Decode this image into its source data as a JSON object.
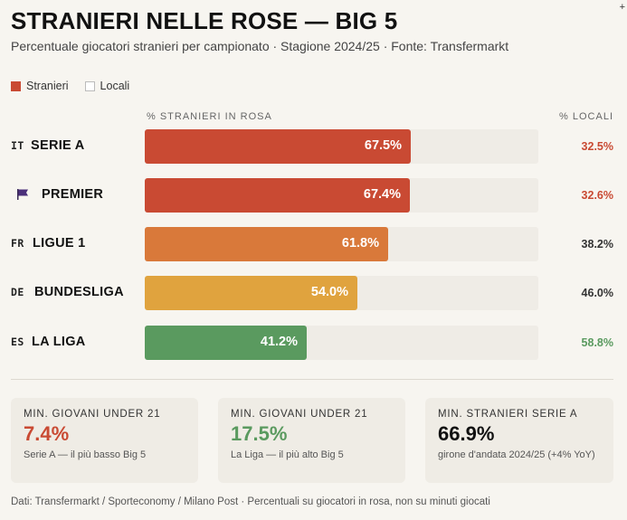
{
  "header": {
    "title": "STRANIERI NELLE ROSE — BIG 5",
    "subtitle": "Percentuale giocatori stranieri per campionato · Stagione 2024/25 · Fonte: Transfermarkt",
    "corner_mark": "+"
  },
  "legend": {
    "foreign_label": "Stranieri",
    "local_label": "Locali"
  },
  "columns": {
    "left": "% STRANIERI IN ROSA",
    "right": "% LOCALI"
  },
  "colors": {
    "red": "#c94a33",
    "orange": "#d9793a",
    "amber": "#e0a33e",
    "green": "#5a9a5f",
    "dark": "#333333"
  },
  "chart_data": {
    "type": "bar",
    "orientation": "horizontal",
    "title": "STRANIERI NELLE ROSE — BIG 5",
    "xlabel": "% STRANIERI IN ROSA",
    "ylabel": "",
    "xlim": [
      0,
      100
    ],
    "categories": [
      "SERIE A",
      "PREMIER",
      "LIGUE 1",
      "BUNDESLIGA",
      "LA LIGA"
    ],
    "flags": [
      "IT",
      "",
      "FR",
      "DE",
      "ES"
    ],
    "series": [
      {
        "name": "Stranieri",
        "values": [
          67.5,
          67.4,
          61.8,
          54.0,
          41.2
        ]
      },
      {
        "name": "Locali",
        "values": [
          32.5,
          32.6,
          38.2,
          46.0,
          58.8
        ]
      }
    ],
    "bar_labels": [
      "67.5%",
      "67.4%",
      "61.8%",
      "54.0%",
      "41.2%"
    ],
    "local_labels": [
      "32.5%",
      "32.6%",
      "38.2%",
      "46.0%",
      "58.8%"
    ],
    "bar_colors": [
      "#c94a33",
      "#c94a33",
      "#d9793a",
      "#e0a33e",
      "#5a9a5f"
    ],
    "local_colors": [
      "#c94a33",
      "#c94a33",
      "#333333",
      "#333333",
      "#5a9a5f"
    ],
    "flag_icons": [
      "",
      "flag-icon",
      "",
      "",
      ""
    ]
  },
  "cards": [
    {
      "label": "MIN. GIOVANI UNDER 21",
      "value": "7.4%",
      "note": "Serie A — il più basso Big 5",
      "color": "#c94a33"
    },
    {
      "label": "MIN. GIOVANI UNDER 21",
      "value": "17.5%",
      "note": "La Liga — il più alto Big 5",
      "color": "#5a9a5f"
    },
    {
      "label": "MIN. STRANIERI SERIE A",
      "value": "66.9%",
      "note": "girone d'andata 2024/25 (+4% YoY)",
      "color": "#111111"
    }
  ],
  "footer": "Dati: Transfermarkt / Sporteconomy / Milano Post · Percentuali su giocatori in rosa, non su minuti giocati"
}
